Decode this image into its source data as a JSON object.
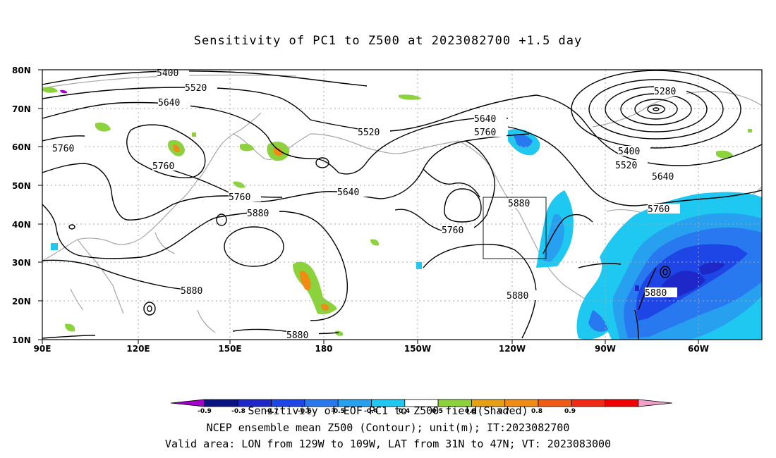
{
  "title": "Sensitivity of PC1 to Z500 at 2023082700 +1.5 day",
  "axes": {
    "lat_labels": [
      "80N",
      "70N",
      "60N",
      "50N",
      "40N",
      "30N",
      "20N",
      "10N"
    ],
    "lon_labels": [
      "90E",
      "120E",
      "150E",
      "180",
      "150W",
      "120W",
      "90W",
      "60W"
    ]
  },
  "contour_labels": [
    "5400",
    "5520",
    "5640",
    "5760",
    "5760",
    "5760",
    "5520",
    "5640",
    "5640",
    "5760",
    "5280",
    "5400",
    "5520",
    "5640",
    "5760",
    "5880",
    "5880",
    "5760",
    "5880",
    "5880",
    "5880",
    "5880"
  ],
  "colorbar": {
    "colors": [
      "#a000c8",
      "#0a1480",
      "#1e28c8",
      "#1e46e6",
      "#2878f0",
      "#28a0f0",
      "#1ec8f0",
      "#ffffff",
      "#8cd23c",
      "#e6a014",
      "#f08c14",
      "#f05a14",
      "#f02814",
      "#f00000",
      "#f0a0c8"
    ],
    "tick_labels": [
      "-0.9",
      "-0.8",
      "-0.7",
      "-0.6",
      "-0.5",
      "-0.4",
      "0.4",
      "0.5",
      "0.6",
      "0.7",
      "0.8",
      "0.9"
    ]
  },
  "footer": {
    "line1": "Sensitivity of EOF PC1 to Z500 field(Shaded)",
    "line2": "NCEP ensemble mean Z500 (Contour); unit(m); IT:2023082700",
    "line3": "Valid area: LON from 129W to 109W, LAT from 31N to 47N; VT: 2023083000"
  }
}
